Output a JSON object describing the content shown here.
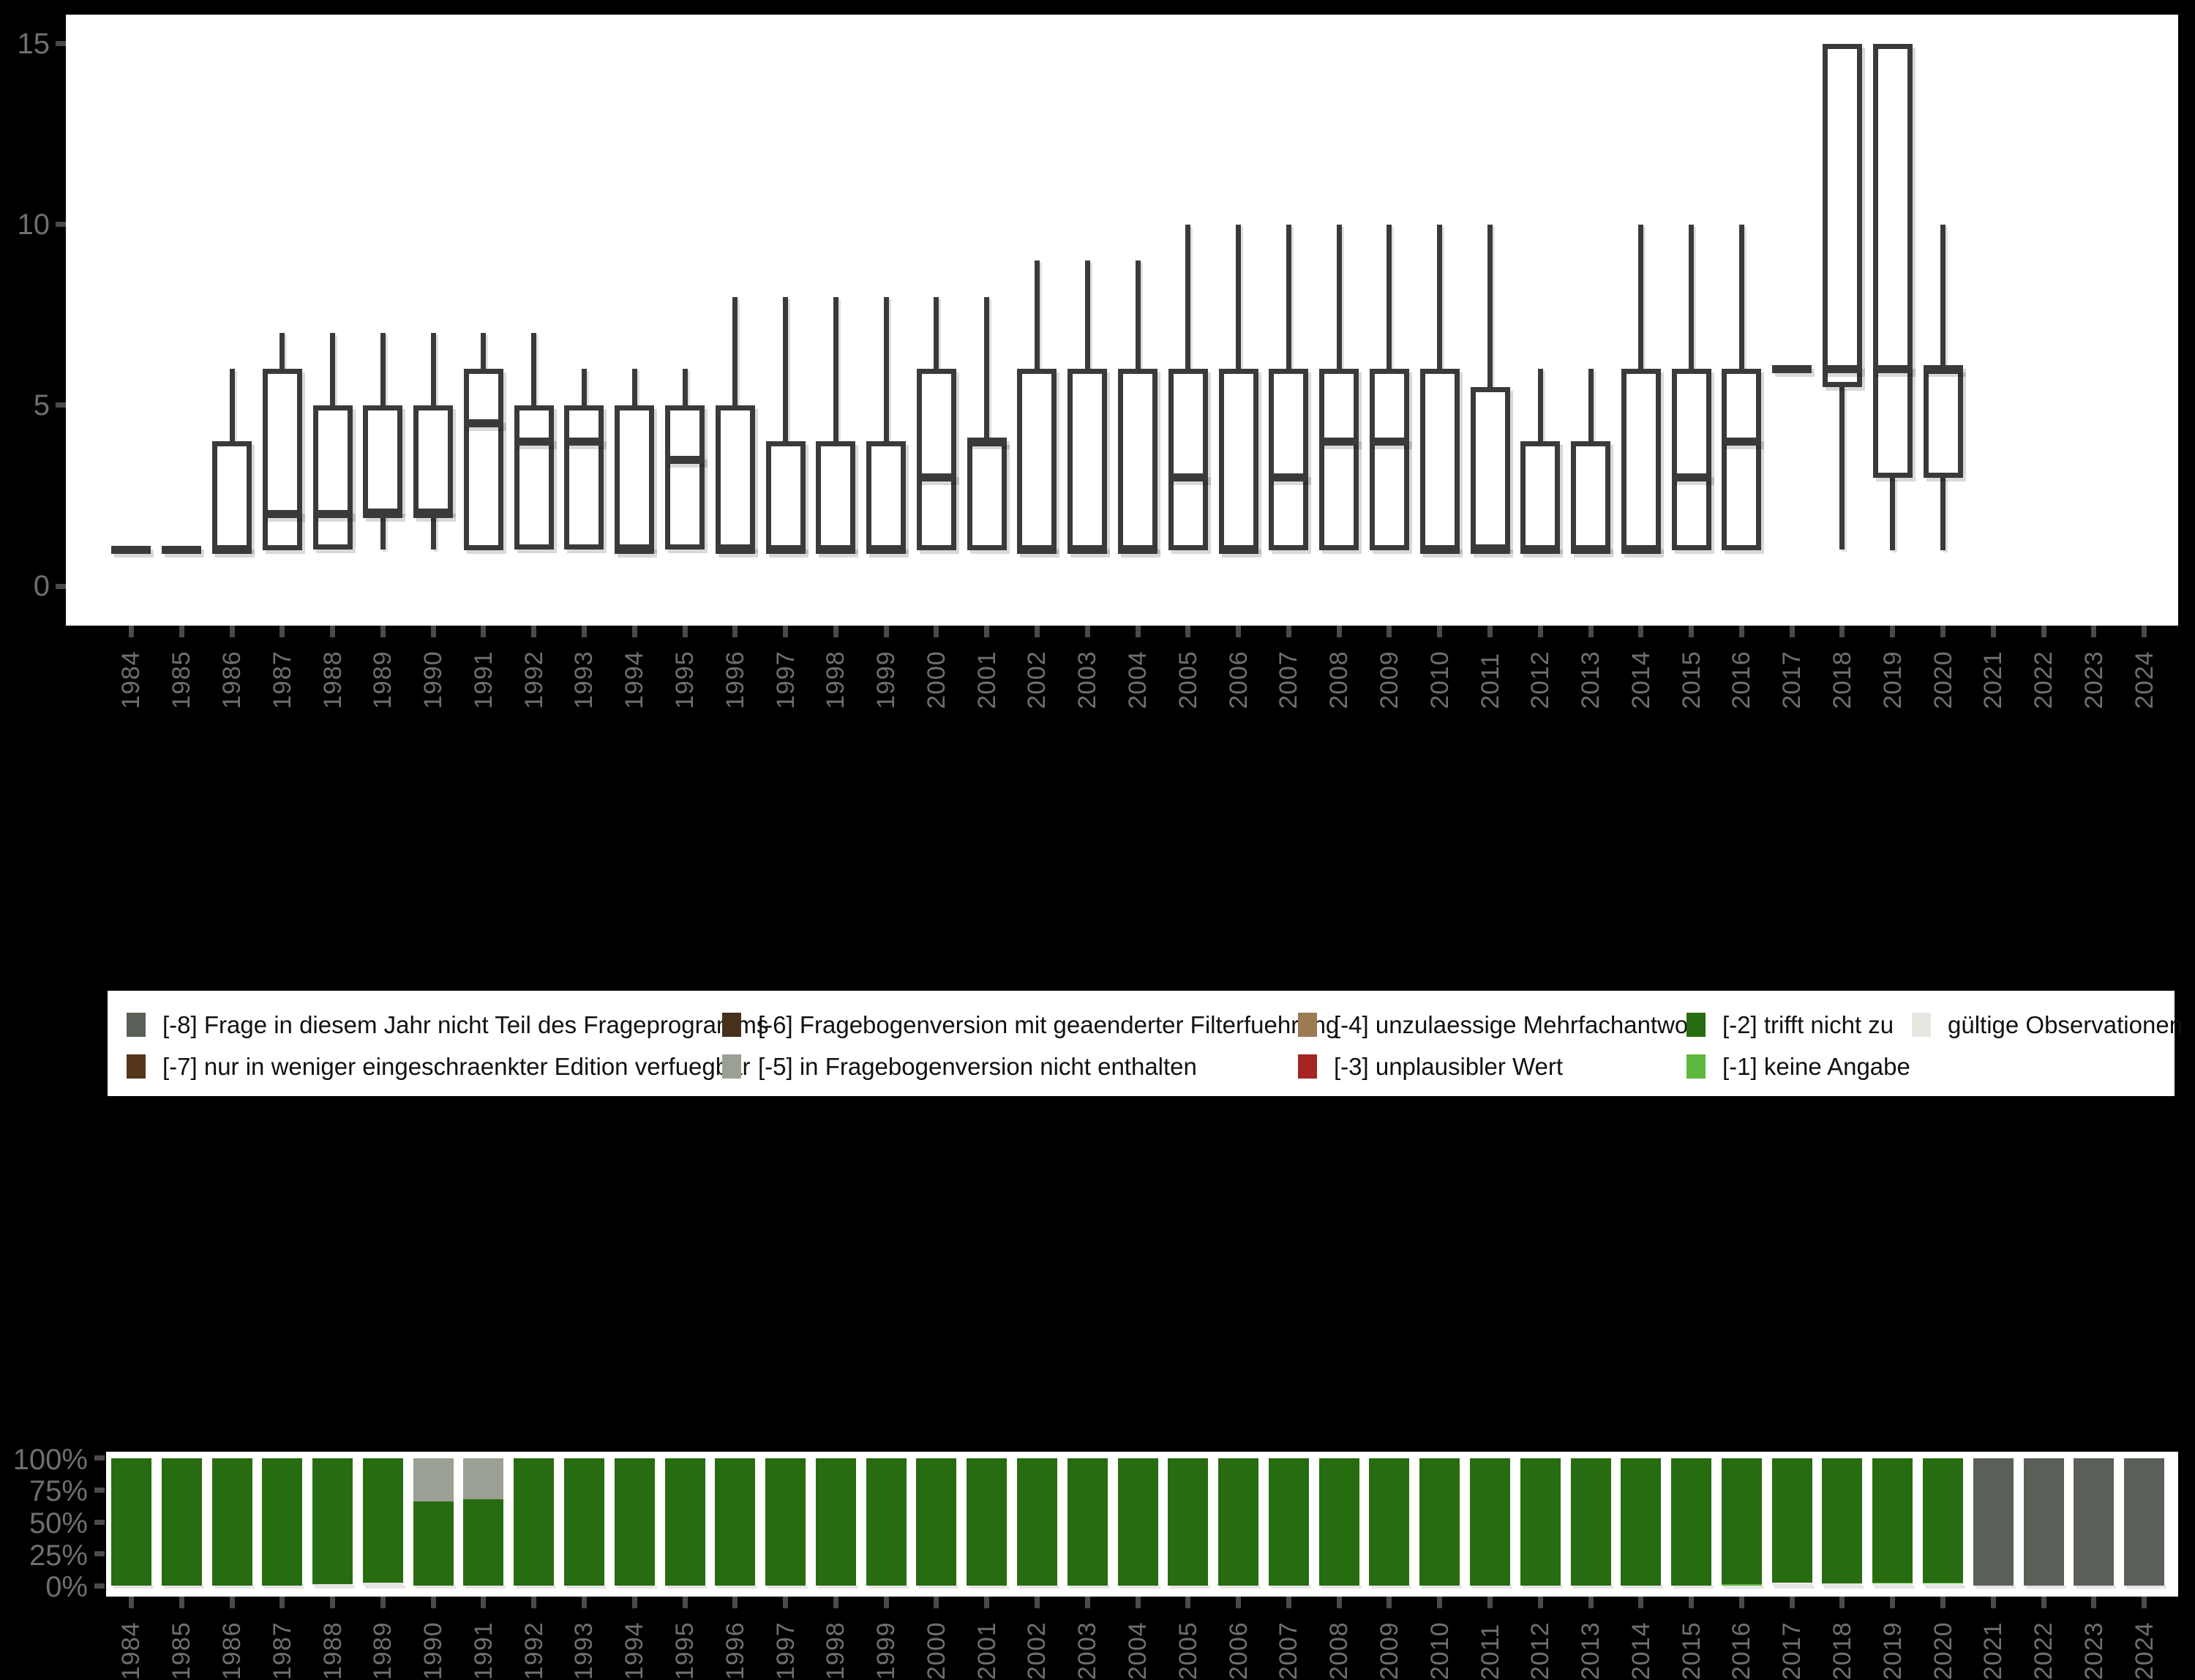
{
  "page": {
    "background": "#000000",
    "panel_background": "#ffffff"
  },
  "colors": {
    "na_-8": "#5a6058",
    "na_-7": "#55371c",
    "na_-6": "#48301a",
    "na_-5": "#9ba094",
    "na_-4": "#9c7a52",
    "na_-3": "#a32421",
    "na_-2": "#276c10",
    "na_-1": "#5cb83c",
    "valid": "#e5e8e1",
    "box_stroke": "#3a3a3a",
    "axis_text": "#6f6f6f",
    "tick": "#4a4a4a"
  },
  "years": [
    "1984",
    "1985",
    "1986",
    "1987",
    "1988",
    "1989",
    "1990",
    "1991",
    "1992",
    "1993",
    "1994",
    "1995",
    "1996",
    "1997",
    "1998",
    "1999",
    "2000",
    "2001",
    "2002",
    "2003",
    "2004",
    "2005",
    "2006",
    "2007",
    "2008",
    "2009",
    "2010",
    "2011",
    "2012",
    "2013",
    "2014",
    "2015",
    "2016",
    "2017",
    "2018",
    "2019",
    "2020",
    "2021",
    "2022",
    "2023",
    "2024"
  ],
  "top_axis": {
    "ytick_labels": [
      "0",
      "5",
      "10",
      "15"
    ],
    "ytick_values": [
      0,
      5,
      10,
      15
    ]
  },
  "bottom_axis": {
    "ytick_labels": [
      "0%",
      "25%",
      "50%",
      "75%",
      "100%"
    ],
    "ytick_values": [
      0,
      25,
      50,
      75,
      100
    ]
  },
  "legend": {
    "columns": [
      [
        {
          "label": "[-8] Frage in diesem Jahr nicht Teil des Frageprogramms",
          "color": "na_-8"
        },
        {
          "label": "[-7] nur in weniger eingeschraenkter Edition verfuegbar",
          "color": "na_-7"
        }
      ],
      [
        {
          "label": "[-6] Fragebogenversion mit geaenderter Filterfuehrung",
          "color": "na_-6"
        },
        {
          "label": "[-5] in Fragebogenversion nicht enthalten",
          "color": "na_-5"
        }
      ],
      [
        {
          "label": "[-4] unzulaessige Mehrfachantwort",
          "color": "na_-4"
        },
        {
          "label": "[-3] unplausibler Wert",
          "color": "na_-3"
        }
      ],
      [
        {
          "label": "[-2] trifft nicht zu",
          "color": "na_-2"
        },
        {
          "label": "[-1] keine Angabe",
          "color": "na_-1"
        }
      ],
      [
        {
          "label": "gültige Observationen",
          "color": "valid"
        }
      ]
    ]
  },
  "chart_data": [
    {
      "type": "boxplot",
      "title": "",
      "xlabel": "",
      "ylabel": "",
      "ylim": [
        0,
        15
      ],
      "yticks": [
        0,
        5,
        10,
        15
      ],
      "grid": false,
      "categories": [
        "1984",
        "1985",
        "1986",
        "1987",
        "1988",
        "1989",
        "1990",
        "1991",
        "1992",
        "1993",
        "1994",
        "1995",
        "1996",
        "1997",
        "1998",
        "1999",
        "2000",
        "2001",
        "2002",
        "2003",
        "2004",
        "2005",
        "2006",
        "2007",
        "2008",
        "2009",
        "2010",
        "2011",
        "2012",
        "2013",
        "2014",
        "2015",
        "2016",
        "2017",
        "2018",
        "2019",
        "2020",
        "2021",
        "2022",
        "2023",
        "2024"
      ],
      "boxes_format": "[whisker_low, q1, median, q3, whisker_high] — null = no data",
      "boxes": [
        [
          1,
          1,
          1,
          1,
          1
        ],
        [
          1,
          1,
          1,
          1,
          1
        ],
        [
          1,
          1,
          1,
          4,
          6
        ],
        [
          1,
          1,
          2,
          6,
          7
        ],
        [
          1,
          1,
          2,
          5,
          7
        ],
        [
          1,
          2,
          2,
          5,
          7
        ],
        [
          1,
          2,
          2,
          5,
          7
        ],
        [
          1,
          1,
          4.5,
          6,
          7
        ],
        [
          1,
          1,
          4,
          5,
          7
        ],
        [
          1,
          1,
          4,
          5,
          6
        ],
        [
          1,
          1,
          1,
          5,
          6
        ],
        [
          1,
          1,
          3.5,
          5,
          6
        ],
        [
          1,
          1,
          1,
          5,
          8
        ],
        [
          1,
          1,
          1,
          4,
          8
        ],
        [
          1,
          1,
          1,
          4,
          8
        ],
        [
          1,
          1,
          1,
          4,
          8
        ],
        [
          1,
          1,
          3,
          6,
          8
        ],
        [
          1,
          1,
          4,
          4,
          8
        ],
        [
          1,
          1,
          1,
          6,
          9
        ],
        [
          1,
          1,
          1,
          6,
          9
        ],
        [
          1,
          1,
          1,
          6,
          9
        ],
        [
          1,
          1,
          3,
          6,
          10
        ],
        [
          1,
          1,
          1,
          6,
          10
        ],
        [
          1,
          1,
          3,
          6,
          10
        ],
        [
          1,
          1,
          4,
          6,
          10
        ],
        [
          1,
          1,
          4,
          6,
          10
        ],
        [
          1,
          1,
          1,
          6,
          10
        ],
        [
          1,
          1,
          1,
          5.5,
          10
        ],
        [
          1,
          1,
          1,
          4,
          6
        ],
        [
          1,
          1,
          1,
          4,
          6
        ],
        [
          1,
          1,
          1,
          6,
          10
        ],
        [
          1,
          1,
          3,
          6,
          10
        ],
        [
          1,
          1,
          4,
          6,
          10
        ],
        [
          6,
          6,
          6,
          6,
          6
        ],
        [
          1,
          5.5,
          6,
          15,
          15
        ],
        [
          1,
          3,
          6,
          15,
          15
        ],
        [
          1,
          3,
          6,
          6,
          10
        ],
        null,
        null,
        null,
        null
      ]
    },
    {
      "type": "bar",
      "subtype": "stacked-percent",
      "title": "",
      "xlabel": "",
      "ylabel": "",
      "ylim": [
        0,
        100
      ],
      "yticks": [
        0,
        25,
        50,
        75,
        100
      ],
      "grid": false,
      "categories": [
        "1984",
        "1985",
        "1986",
        "1987",
        "1988",
        "1989",
        "1990",
        "1991",
        "1992",
        "1993",
        "1994",
        "1995",
        "1996",
        "1997",
        "1998",
        "1999",
        "2000",
        "2001",
        "2002",
        "2003",
        "2004",
        "2005",
        "2006",
        "2007",
        "2008",
        "2009",
        "2010",
        "2011",
        "2012",
        "2013",
        "2014",
        "2015",
        "2016",
        "2017",
        "2018",
        "2019",
        "2020",
        "2021",
        "2022",
        "2023",
        "2024"
      ],
      "segments_format": "bottom-up stacked segments [color_key, percent]",
      "bars": [
        [
          [
            "na_-2",
            100
          ]
        ],
        [
          [
            "na_-2",
            100
          ]
        ],
        [
          [
            "na_-2",
            100
          ]
        ],
        [
          [
            "na_-2",
            100
          ]
        ],
        [
          [
            "valid",
            1
          ],
          [
            "na_-2",
            99
          ]
        ],
        [
          [
            "valid",
            2.5
          ],
          [
            "na_-2",
            97.5
          ]
        ],
        [
          [
            "na_-2",
            66
          ],
          [
            "na_-5",
            34
          ]
        ],
        [
          [
            "na_-2",
            68
          ],
          [
            "na_-5",
            32
          ]
        ],
        [
          [
            "na_-2",
            100
          ]
        ],
        [
          [
            "na_-2",
            100
          ]
        ],
        [
          [
            "na_-2",
            100
          ]
        ],
        [
          [
            "na_-2",
            100
          ]
        ],
        [
          [
            "na_-2",
            100
          ]
        ],
        [
          [
            "na_-2",
            100
          ]
        ],
        [
          [
            "na_-2",
            100
          ]
        ],
        [
          [
            "na_-2",
            100
          ]
        ],
        [
          [
            "na_-2",
            100
          ]
        ],
        [
          [
            "na_-2",
            100
          ]
        ],
        [
          [
            "na_-2",
            100
          ]
        ],
        [
          [
            "na_-2",
            100
          ]
        ],
        [
          [
            "na_-2",
            100
          ]
        ],
        [
          [
            "na_-2",
            100
          ]
        ],
        [
          [
            "na_-2",
            100
          ]
        ],
        [
          [
            "na_-2",
            100
          ]
        ],
        [
          [
            "na_-2",
            100
          ]
        ],
        [
          [
            "na_-2",
            100
          ]
        ],
        [
          [
            "na_-2",
            100
          ]
        ],
        [
          [
            "na_-2",
            100
          ]
        ],
        [
          [
            "na_-2",
            100
          ]
        ],
        [
          [
            "na_-2",
            100
          ]
        ],
        [
          [
            "na_-2",
            100
          ]
        ],
        [
          [
            "na_-2",
            100
          ]
        ],
        [
          [
            "na_-1",
            1
          ],
          [
            "na_-2",
            99
          ]
        ],
        [
          [
            "valid",
            2
          ],
          [
            "na_-2",
            98
          ]
        ],
        [
          [
            "valid",
            1.5
          ],
          [
            "na_-2",
            98.5
          ]
        ],
        [
          [
            "valid",
            1.5
          ],
          [
            "na_-1",
            1
          ],
          [
            "na_-2",
            97.5
          ]
        ],
        [
          [
            "valid",
            1.5
          ],
          [
            "na_-1",
            1
          ],
          [
            "na_-2",
            97.5
          ]
        ],
        [
          [
            "na_-8",
            100
          ]
        ],
        [
          [
            "na_-8",
            100
          ]
        ],
        [
          [
            "na_-8",
            100
          ]
        ],
        [
          [
            "na_-8",
            100
          ]
        ]
      ]
    }
  ]
}
